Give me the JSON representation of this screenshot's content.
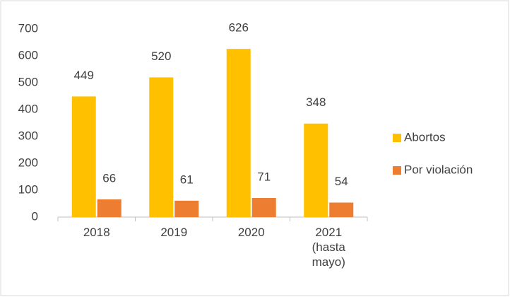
{
  "chart_data": {
    "type": "bar",
    "categories": [
      "2018",
      "2019",
      "2020",
      "2021 (hasta mayo)"
    ],
    "series": [
      {
        "name": "Abortos",
        "color": "#FFC000",
        "values": [
          449,
          520,
          626,
          348
        ]
      },
      {
        "name": "Por violación",
        "color": "#ED7D31",
        "values": [
          66,
          61,
          71,
          54
        ]
      }
    ],
    "ylim": [
      0,
      700
    ],
    "yticks": [
      0,
      100,
      200,
      300,
      400,
      500,
      600,
      700
    ],
    "grid": false,
    "legend": "right"
  }
}
